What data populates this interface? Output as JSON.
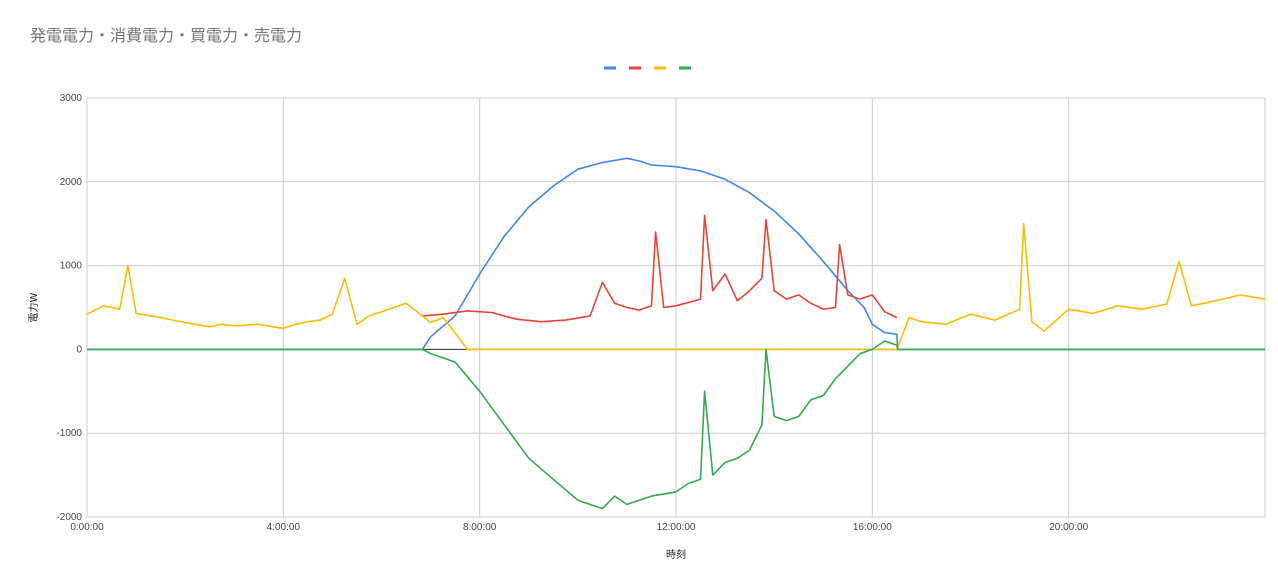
{
  "chart_data": {
    "type": "line",
    "title": "発電電力・消費電力・買電力・売電力",
    "xlabel": "時刻",
    "ylabel": "電力W",
    "xlim": [
      "0:00:00",
      "23:59:59"
    ],
    "ylim": [
      -2000,
      3000
    ],
    "x_ticks": [
      "0:00:00",
      "4:00:00",
      "8:00:00",
      "12:00:00",
      "16:00:00",
      "20:00:00"
    ],
    "y_ticks": [
      "3000",
      "2000",
      "1000",
      "0",
      "-1000",
      "-2000"
    ],
    "grid": true,
    "legend_position": "top",
    "series": [
      {
        "color": "#4285F4",
        "x": [
          "0:00:00",
          "6:50:00",
          "7:00:00",
          "7:30:00",
          "8:00:00",
          "8:30:00",
          "9:00:00",
          "9:30:00",
          "10:00:00",
          "10:30:00",
          "11:00:00",
          "11:15:00",
          "11:30:00",
          "12:00:00",
          "12:30:00",
          "13:00:00",
          "13:30:00",
          "14:00:00",
          "14:30:00",
          "15:00:00",
          "15:30:00",
          "15:50:00",
          "16:00:00",
          "16:15:00",
          "16:30:00",
          "16:31:00",
          "23:59:59"
        ],
        "y": [
          0,
          0,
          150,
          400,
          900,
          1350,
          1700,
          1950,
          2150,
          2230,
          2280,
          2250,
          2200,
          2180,
          2130,
          2030,
          1870,
          1650,
          1380,
          1050,
          700,
          500,
          300,
          200,
          180,
          0,
          0
        ]
      },
      {
        "color": "#EA4335",
        "x": [
          "6:50:00",
          "7:15:00",
          "7:45:00",
          "8:15:00",
          "8:45:00",
          "9:15:00",
          "9:45:00",
          "10:15:00",
          "10:30:00",
          "10:45:00",
          "11:00:00",
          "11:15:00",
          "11:30:00",
          "11:35:00",
          "11:45:00",
          "12:00:00",
          "12:15:00",
          "12:30:00",
          "12:35:00",
          "12:45:00",
          "13:00:00",
          "13:15:00",
          "13:30:00",
          "13:45:00",
          "13:50:00",
          "14:00:00",
          "14:15:00",
          "14:30:00",
          "14:45:00",
          "15:00:00",
          "15:15:00",
          "15:20:00",
          "15:30:00",
          "15:45:00",
          "16:00:00",
          "16:15:00",
          "16:30:00"
        ],
        "y": [
          400,
          420,
          460,
          440,
          360,
          330,
          350,
          400,
          800,
          550,
          500,
          470,
          520,
          1400,
          500,
          520,
          560,
          600,
          1600,
          700,
          900,
          580,
          700,
          850,
          1550,
          700,
          600,
          650,
          550,
          480,
          500,
          1250,
          650,
          600,
          650,
          450,
          380
        ]
      },
      {
        "color": "#FBBC04",
        "x": [
          "0:00:00",
          "0:20:00",
          "0:40:00",
          "0:50:00",
          "1:00:00",
          "1:30:00",
          "2:00:00",
          "2:30:00",
          "2:45:00",
          "3:00:00",
          "3:30:00",
          "4:00:00",
          "4:15:00",
          "4:30:00",
          "4:45:00",
          "5:00:00",
          "5:15:00",
          "5:30:00",
          "5:45:00",
          "6:00:00",
          "6:30:00",
          "6:50:00",
          "7:00:00",
          "7:15:00",
          "7:30:00",
          "7:45:00",
          "16:30:00",
          "16:45:00",
          "17:00:00",
          "17:30:00",
          "18:00:00",
          "18:30:00",
          "19:00:00",
          "19:05:00",
          "19:15:00",
          "19:30:00",
          "20:00:00",
          "20:30:00",
          "21:00:00",
          "21:30:00",
          "22:00:00",
          "22:15:00",
          "22:30:00",
          "23:00:00",
          "23:30:00",
          "23:59:59"
        ],
        "y": [
          420,
          520,
          480,
          1000,
          430,
          380,
          320,
          270,
          300,
          280,
          300,
          250,
          300,
          330,
          350,
          420,
          850,
          300,
          400,
          450,
          550,
          400,
          320,
          380,
          200,
          0,
          0,
          380,
          330,
          300,
          420,
          350,
          480,
          1500,
          330,
          220,
          480,
          430,
          520,
          480,
          540,
          1050,
          520,
          580,
          650,
          600
        ]
      },
      {
        "color": "#34A853",
        "x": [
          "0:00:00",
          "6:50:00",
          "7:00:00",
          "7:30:00",
          "8:00:00",
          "8:30:00",
          "9:00:00",
          "9:30:00",
          "10:00:00",
          "10:30:00",
          "10:45:00",
          "11:00:00",
          "11:30:00",
          "12:00:00",
          "12:15:00",
          "12:30:00",
          "12:35:00",
          "12:45:00",
          "13:00:00",
          "13:15:00",
          "13:30:00",
          "13:45:00",
          "13:50:00",
          "14:00:00",
          "14:15:00",
          "14:30:00",
          "14:45:00",
          "15:00:00",
          "15:15:00",
          "15:30:00",
          "15:45:00",
          "16:00:00",
          "16:15:00",
          "16:30:00",
          "16:31:00",
          "23:59:59"
        ],
        "y": [
          0,
          0,
          -50,
          -150,
          -500,
          -900,
          -1300,
          -1550,
          -1800,
          -1900,
          -1750,
          -1850,
          -1750,
          -1700,
          -1600,
          -1550,
          -500,
          -1500,
          -1350,
          -1300,
          -1200,
          -900,
          0,
          -800,
          -850,
          -800,
          -600,
          -550,
          -350,
          -200,
          -50,
          0,
          100,
          50,
          0,
          0
        ]
      }
    ]
  }
}
